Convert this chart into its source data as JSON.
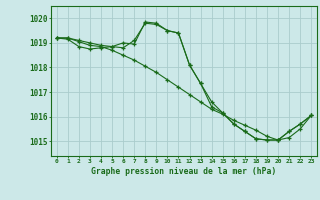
{
  "title": "Graphe pression niveau de la mer (hPa)",
  "background_color": "#cce8e8",
  "grid_color": "#aacccc",
  "line_color": "#1a6b1a",
  "x_labels": [
    "0",
    "1",
    "2",
    "3",
    "4",
    "5",
    "6",
    "7",
    "8",
    "9",
    "10",
    "11",
    "12",
    "13",
    "14",
    "15",
    "16",
    "17",
    "18",
    "19",
    "20",
    "21",
    "22",
    "23"
  ],
  "ylim": [
    1014.4,
    1020.5
  ],
  "yticks": [
    1015,
    1016,
    1017,
    1018,
    1019,
    1020
  ],
  "series": [
    [
      1019.2,
      1019.2,
      1019.1,
      1019.0,
      1018.9,
      1018.85,
      1018.8,
      1019.1,
      1019.8,
      1019.75,
      1019.5,
      1019.4,
      1018.1,
      1017.35,
      1016.4,
      1016.15,
      1015.7,
      1015.4,
      1015.1,
      1015.05,
      1015.05,
      1015.4,
      1015.7,
      1016.05
    ],
    [
      1019.2,
      1019.2,
      1019.05,
      1018.9,
      1018.85,
      1018.7,
      1018.5,
      1018.3,
      1018.05,
      1017.8,
      1017.5,
      1017.2,
      1016.9,
      1016.6,
      1016.3,
      1016.1,
      1015.85,
      1015.65,
      1015.45,
      1015.2,
      1015.05,
      1015.15,
      1015.5,
      1016.05
    ],
    [
      1019.2,
      1019.15,
      1018.85,
      1018.75,
      1018.8,
      1018.85,
      1019.0,
      1018.95,
      1019.85,
      1019.8,
      1019.5,
      1019.4,
      1018.1,
      1017.35,
      1016.6,
      1016.15,
      1015.7,
      1015.4,
      1015.1,
      1015.05,
      1015.05,
      1015.4,
      1015.7,
      1016.05
    ]
  ]
}
